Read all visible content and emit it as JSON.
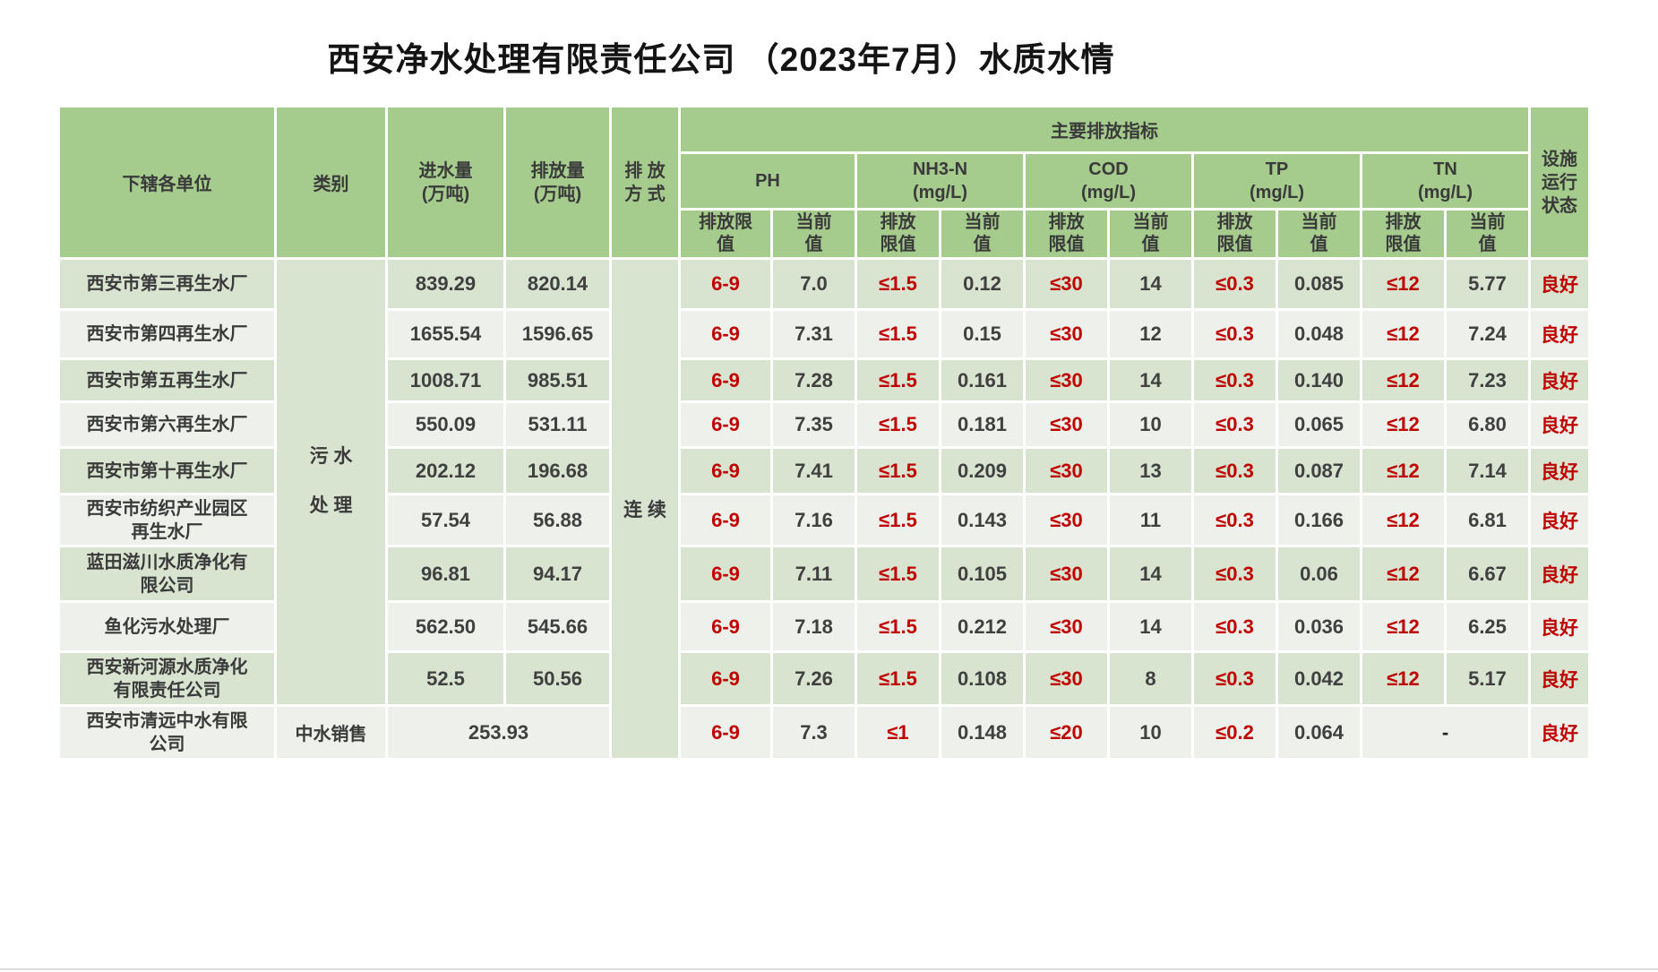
{
  "title": "西安净水处理有限责任公司 （2023年7月）水质水情",
  "colors": {
    "header_green": "#a5cb8d",
    "row_odd": "#d8e3d0",
    "row_even": "#eef1eb",
    "merged_green": "#dde9d5",
    "limit_red": "#c00000",
    "text_dark": "#404040"
  },
  "header": {
    "units": "下辖各单位",
    "category": "类别",
    "inflow": "进水量\n(万吨)",
    "discharge": "排放量\n(万吨)",
    "method": "排 放\n方 式",
    "main_indicators": "主要排放指标",
    "facility_status": "设施\n运行\n状态",
    "indicators": [
      {
        "name": "PH",
        "limit_label": "排放限\n值",
        "current_label": "当前\n值"
      },
      {
        "name": "NH3-N\n(mg/L)",
        "limit_label": "排放\n限值",
        "current_label": "当前\n值"
      },
      {
        "name": "COD\n(mg/L)",
        "limit_label": "排放\n限值",
        "current_label": "当前\n值"
      },
      {
        "name": "TP\n(mg/L)",
        "limit_label": "排放\n限值",
        "current_label": "当前\n值"
      },
      {
        "name": "TN\n(mg/L)",
        "limit_label": "排放\n限值",
        "current_label": "当前\n值"
      }
    ]
  },
  "merged": {
    "category_sewage": "污 水\n处 理",
    "method_continuous": "连 续"
  },
  "rows": [
    {
      "unit": "西安市第三再生水厂",
      "inflow": "839.29",
      "discharge": "820.14",
      "indicators": [
        [
          "6-9",
          "7.0"
        ],
        [
          "≤1.5",
          "0.12"
        ],
        [
          "≤30",
          "14"
        ],
        [
          "≤0.3",
          "0.085"
        ],
        [
          "≤12",
          "5.77"
        ]
      ],
      "status": "良好"
    },
    {
      "unit": "西安市第四再生水厂",
      "inflow": "1655.54",
      "discharge": "1596.65",
      "indicators": [
        [
          "6-9",
          "7.31"
        ],
        [
          "≤1.5",
          "0.15"
        ],
        [
          "≤30",
          "12"
        ],
        [
          "≤0.3",
          "0.048"
        ],
        [
          "≤12",
          "7.24"
        ]
      ],
      "status": "良好"
    },
    {
      "unit": "西安市第五再生水厂",
      "inflow": "1008.71",
      "discharge": "985.51",
      "indicators": [
        [
          "6-9",
          "7.28"
        ],
        [
          "≤1.5",
          "0.161"
        ],
        [
          "≤30",
          "14"
        ],
        [
          "≤0.3",
          "0.140"
        ],
        [
          "≤12",
          "7.23"
        ]
      ],
      "status": "良好"
    },
    {
      "unit": "西安市第六再生水厂",
      "inflow": "550.09",
      "discharge": "531.11",
      "indicators": [
        [
          "6-9",
          "7.35"
        ],
        [
          "≤1.5",
          "0.181"
        ],
        [
          "≤30",
          "10"
        ],
        [
          "≤0.3",
          "0.065"
        ],
        [
          "≤12",
          "6.80"
        ]
      ],
      "status": "良好"
    },
    {
      "unit": "西安市第十再生水厂",
      "inflow": "202.12",
      "discharge": "196.68",
      "indicators": [
        [
          "6-9",
          "7.41"
        ],
        [
          "≤1.5",
          "0.209"
        ],
        [
          "≤30",
          "13"
        ],
        [
          "≤0.3",
          "0.087"
        ],
        [
          "≤12",
          "7.14"
        ]
      ],
      "status": "良好"
    },
    {
      "unit": "西安市纺织产业园区\n再生水厂",
      "inflow": "57.54",
      "discharge": "56.88",
      "indicators": [
        [
          "6-9",
          "7.16"
        ],
        [
          "≤1.5",
          "0.143"
        ],
        [
          "≤30",
          "11"
        ],
        [
          "≤0.3",
          "0.166"
        ],
        [
          "≤12",
          "6.81"
        ]
      ],
      "status": "良好"
    },
    {
      "unit": "蓝田滋川水质净化有\n限公司",
      "inflow": "96.81",
      "discharge": "94.17",
      "indicators": [
        [
          "6-9",
          "7.11"
        ],
        [
          "≤1.5",
          "0.105"
        ],
        [
          "≤30",
          "14"
        ],
        [
          "≤0.3",
          "0.06"
        ],
        [
          "≤12",
          "6.67"
        ]
      ],
      "status": "良好"
    },
    {
      "unit": "鱼化污水处理厂",
      "inflow": "562.50",
      "discharge": "545.66",
      "indicators": [
        [
          "6-9",
          "7.18"
        ],
        [
          "≤1.5",
          "0.212"
        ],
        [
          "≤30",
          "14"
        ],
        [
          "≤0.3",
          "0.036"
        ],
        [
          "≤12",
          "6.25"
        ]
      ],
      "status": "良好"
    },
    {
      "unit": "西安新河源水质净化\n有限责任公司",
      "inflow": "52.5",
      "discharge": "50.56",
      "indicators": [
        [
          "6-9",
          "7.26"
        ],
        [
          "≤1.5",
          "0.108"
        ],
        [
          "≤30",
          "8"
        ],
        [
          "≤0.3",
          "0.042"
        ],
        [
          "≤12",
          "5.17"
        ]
      ],
      "status": "良好"
    },
    {
      "unit": "西安市清远中水有限\n公司",
      "category": "中水销售",
      "volume": "253.93",
      "indicators": [
        [
          "6-9",
          "7.3"
        ],
        [
          "≤1",
          "0.148"
        ],
        [
          "≤20",
          "10"
        ],
        [
          "≤0.2",
          "0.064"
        ]
      ],
      "tn_merged": "-",
      "status": "良好"
    }
  ]
}
